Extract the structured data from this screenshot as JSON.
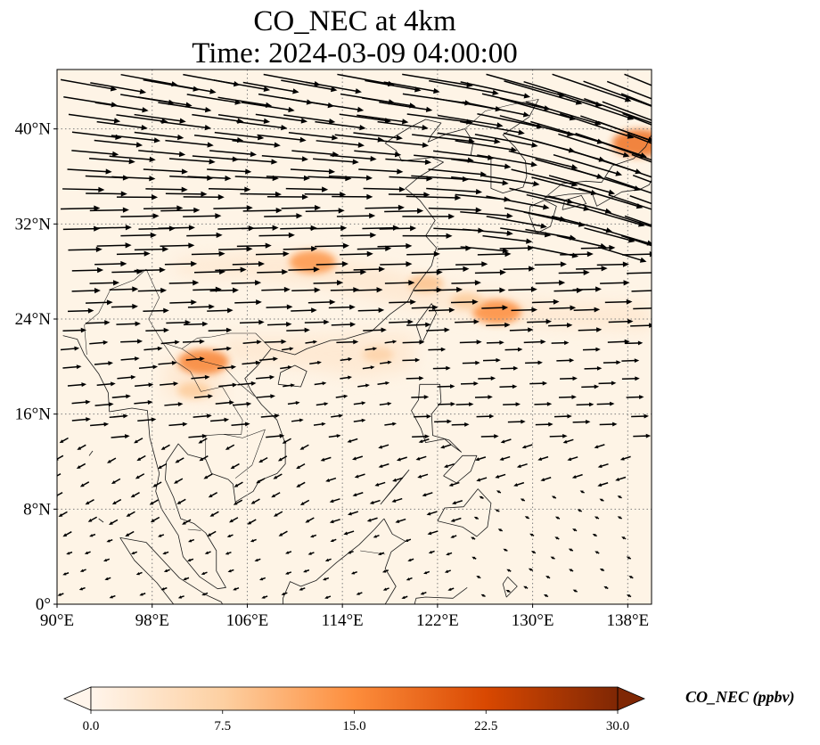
{
  "title": {
    "line1": "CO_NEC at 4km",
    "line2": "Time: 2024-03-09 04:00:00"
  },
  "map": {
    "lon_range": [
      90,
      140
    ],
    "lat_range": [
      0,
      45
    ],
    "lon_ticks": [
      {
        "value": 90,
        "label": "90°E"
      },
      {
        "value": 98,
        "label": "98°E"
      },
      {
        "value": 106,
        "label": "106°E"
      },
      {
        "value": 114,
        "label": "114°E"
      },
      {
        "value": 122,
        "label": "122°E"
      },
      {
        "value": 130,
        "label": "130°E"
      },
      {
        "value": 138,
        "label": "138°E"
      }
    ],
    "lat_ticks": [
      {
        "value": 0,
        "label": "0°"
      },
      {
        "value": 8,
        "label": "8°N"
      },
      {
        "value": 16,
        "label": "16°N"
      },
      {
        "value": 24,
        "label": "24°N"
      },
      {
        "value": 32,
        "label": "32°N"
      },
      {
        "value": 40,
        "label": "40°N"
      }
    ],
    "gridlines": true,
    "field": "CO_NEC",
    "high_concentration_areas": [
      {
        "lon": 111.5,
        "lat": 28.8,
        "value": 14
      },
      {
        "lon": 127.0,
        "lat": 24.6,
        "value": 15
      },
      {
        "lon": 102.3,
        "lat": 20.4,
        "value": 16
      },
      {
        "lon": 139.0,
        "lat": 38.8,
        "value": 18
      },
      {
        "lon": 121.0,
        "lat": 27.0,
        "value": 9
      },
      {
        "lon": 117.0,
        "lat": 21.0,
        "value": 7
      },
      {
        "lon": 101.5,
        "lat": 18.0,
        "value": 8
      },
      {
        "lon": 124.5,
        "lat": 25.5,
        "value": 8
      }
    ]
  },
  "colorbar": {
    "min": 0.0,
    "max": 30.0,
    "ticks": [
      "0.0",
      "7.5",
      "15.0",
      "22.5",
      "30.0"
    ],
    "label": "CO_NEC (ppbv)",
    "colors": [
      "#fff5eb",
      "#fdd0a2",
      "#fd8d3c",
      "#d94801",
      "#7f2704"
    ],
    "extend": "both"
  },
  "colors": {
    "background": "#fef4e6",
    "arrow": "#000000",
    "coastline": "#1a1a1a",
    "gridline": "#808080"
  }
}
